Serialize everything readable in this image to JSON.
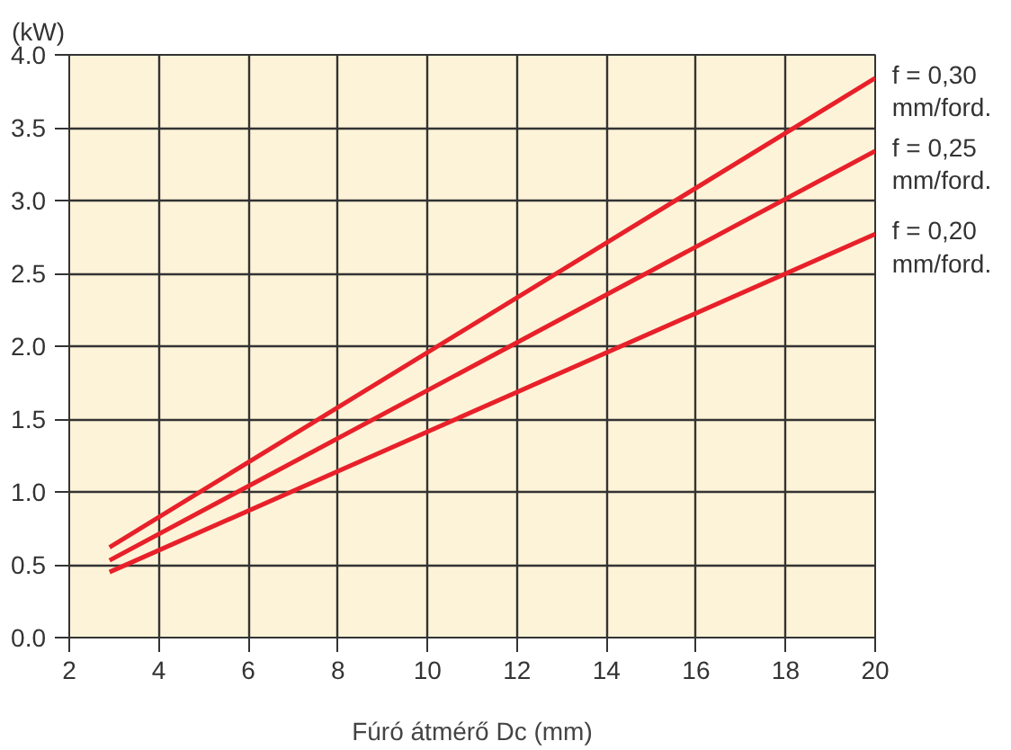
{
  "chart_data": {
    "type": "line",
    "xlabel": "Fúró átmérő Dc (mm)",
    "ylabel": "(kW)",
    "xlim": [
      2,
      20
    ],
    "xticks": [
      2,
      4,
      6,
      8,
      10,
      12,
      14,
      16,
      18,
      20
    ],
    "ylim": [
      0,
      4
    ],
    "yticks": [
      {
        "value": 0,
        "label": "0.0"
      },
      {
        "value": 0.5,
        "label": "0.5"
      },
      {
        "value": 1,
        "label": "1.0"
      },
      {
        "value": 1.5,
        "label": "1.5"
      },
      {
        "value": 2,
        "label": "2.0"
      },
      {
        "value": 2.5,
        "label": "2.5"
      },
      {
        "value": 3,
        "label": "3.0"
      },
      {
        "value": 3.5,
        "label": "3.5"
      },
      {
        "value": 4,
        "label": "4.0"
      }
    ],
    "grid": true,
    "x": [
      2.9,
      20
    ],
    "series": [
      {
        "name": "f = 0,30\nmm/ford.",
        "color": "#e8202a",
        "values": [
          0.62,
          3.84
        ]
      },
      {
        "name": "f = 0,25\nmm/ford.",
        "color": "#e8202a",
        "values": [
          0.53,
          3.34
        ]
      },
      {
        "name": "f = 0,20\nmm/ford.",
        "color": "#e8202a",
        "values": [
          0.45,
          2.77
        ]
      }
    ]
  }
}
